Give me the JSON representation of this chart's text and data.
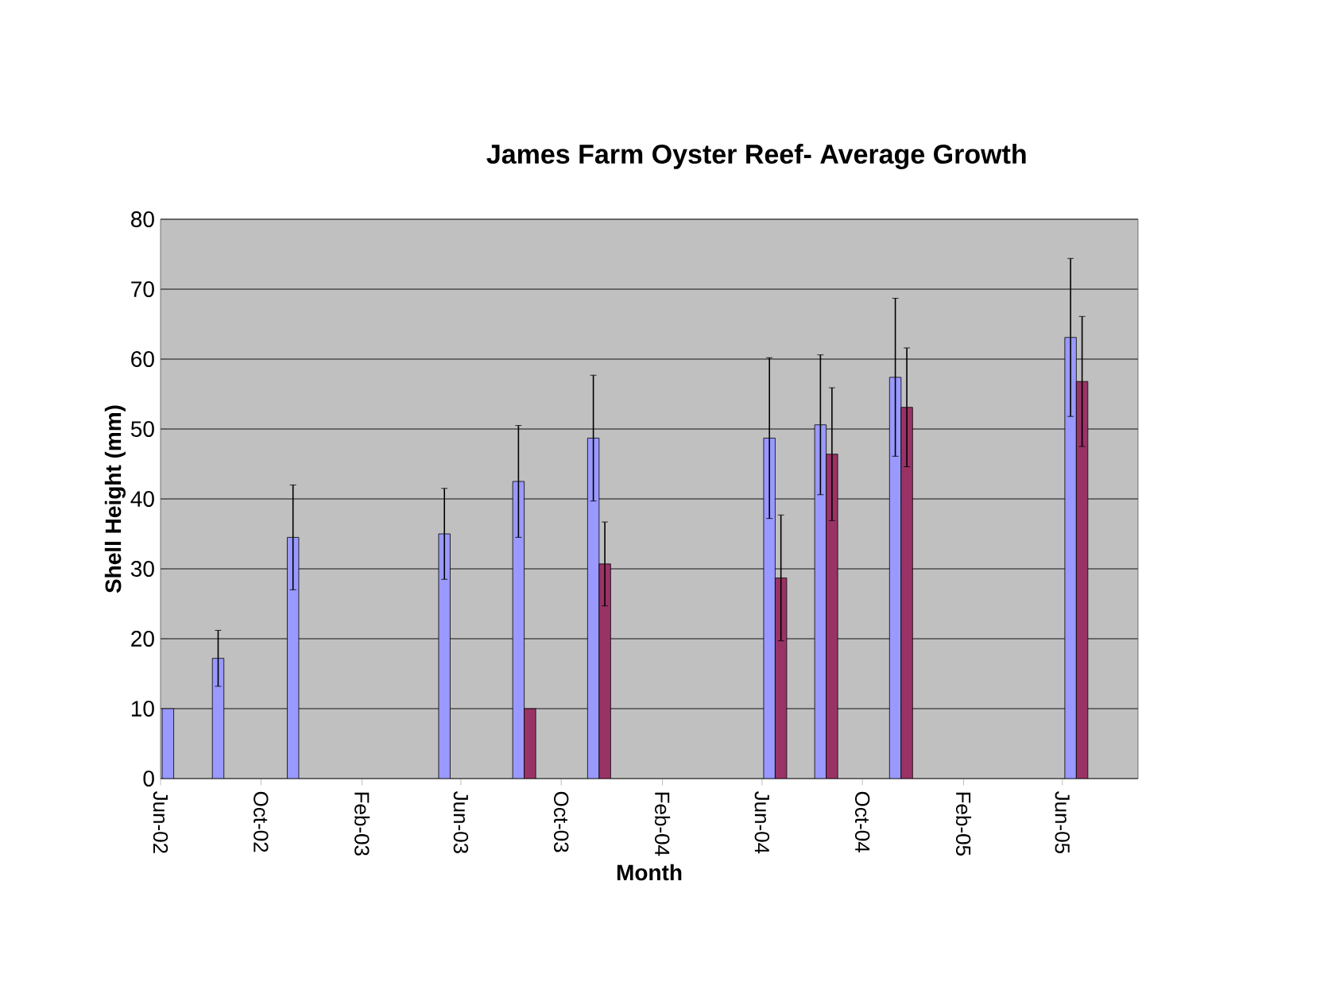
{
  "chart_data": {
    "type": "bar",
    "title": "James Farm Oyster Reef- Average Growth",
    "xlabel": "Month",
    "ylabel": "Shell Height (mm)",
    "x": [
      "2002-06-17",
      "2002-08-17",
      "2002-11-16",
      "2003-05-19",
      "2003-08-17",
      "2003-11-16",
      "2004-06-17",
      "2004-08-18",
      "2004-11-17",
      "2005-06-18"
    ],
    "series": [
      {
        "color": "#9999ff",
        "values": [
          10,
          17.2,
          34.5,
          35,
          42.5,
          48.7,
          48.7,
          50.6,
          57.4,
          63.1
        ],
        "errors": [
          null,
          4,
          7.5,
          6.5,
          8,
          9,
          11.5,
          10,
          11.3,
          11.3
        ]
      },
      {
        "color": "#993366",
        "values": [
          null,
          null,
          null,
          null,
          10,
          30.7,
          28.7,
          46.4,
          53.1,
          56.8
        ],
        "errors": [
          null,
          null,
          null,
          null,
          null,
          6,
          9,
          9.5,
          8.5,
          9.3
        ]
      }
    ],
    "xlim": [
      "2002-06-01",
      "2005-09-01"
    ],
    "xticks": [
      {
        "value": "2002-06-01",
        "label": "Jun-02"
      },
      {
        "value": "2002-10-01",
        "label": "Oct-02"
      },
      {
        "value": "2003-02-01",
        "label": "Feb-03"
      },
      {
        "value": "2003-06-01",
        "label": "Jun-03"
      },
      {
        "value": "2003-10-01",
        "label": "Oct-03"
      },
      {
        "value": "2004-02-01",
        "label": "Feb-04"
      },
      {
        "value": "2004-06-01",
        "label": "Jun-04"
      },
      {
        "value": "2004-10-01",
        "label": "Oct-04"
      },
      {
        "value": "2005-02-01",
        "label": "Feb-05"
      },
      {
        "value": "2005-06-01",
        "label": "Jun-05"
      }
    ],
    "ylim": [
      0,
      80
    ],
    "yticks": [
      0,
      10,
      20,
      30,
      40,
      50,
      60,
      70,
      80
    ],
    "grid": "y"
  }
}
